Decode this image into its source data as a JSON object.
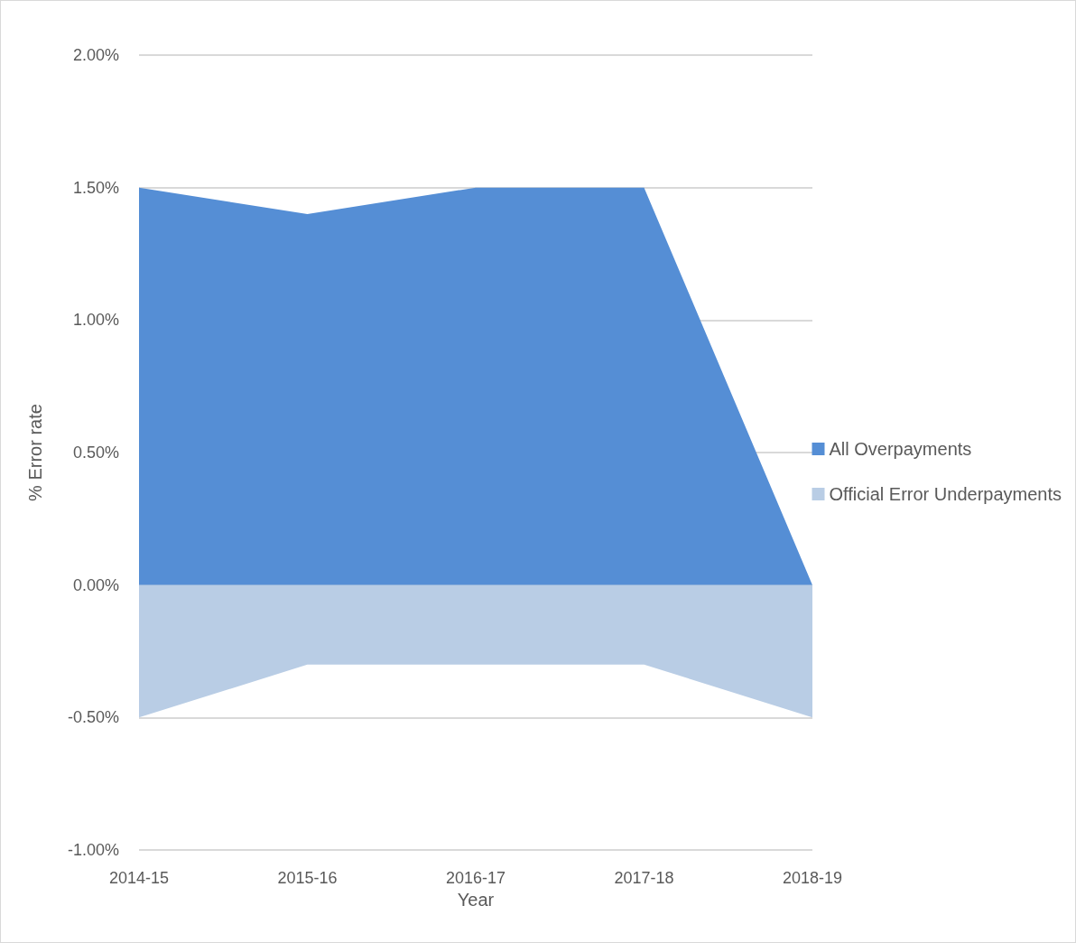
{
  "chart_data": {
    "type": "area",
    "xlabel": "Year",
    "ylabel": "% Error rate",
    "categories": [
      "2014-15",
      "2015-16",
      "2016-17",
      "2017-18",
      "2018-19"
    ],
    "series": [
      {
        "name": "All Overpayments",
        "color": "#558ed5",
        "values": [
          1.5,
          1.4,
          1.5,
          1.5,
          0.0
        ]
      },
      {
        "name": "Official Error Underpayments",
        "color": "#b9cde5",
        "values": [
          -0.5,
          -0.3,
          -0.3,
          -0.3,
          -0.5
        ]
      }
    ],
    "ylim": [
      -1,
      2
    ],
    "yticks": [
      {
        "value": -1,
        "label": "-1.00%"
      },
      {
        "value": -0.5,
        "label": "-0.50%"
      },
      {
        "value": 0,
        "label": "0.00%"
      },
      {
        "value": 0.5,
        "label": "0.50%"
      },
      {
        "value": 1,
        "label": "1.00%"
      },
      {
        "value": 1.5,
        "label": "1.50%"
      },
      {
        "value": 2,
        "label": "2.00%"
      }
    ],
    "grid": "y",
    "legend": "right",
    "marker": "none"
  }
}
